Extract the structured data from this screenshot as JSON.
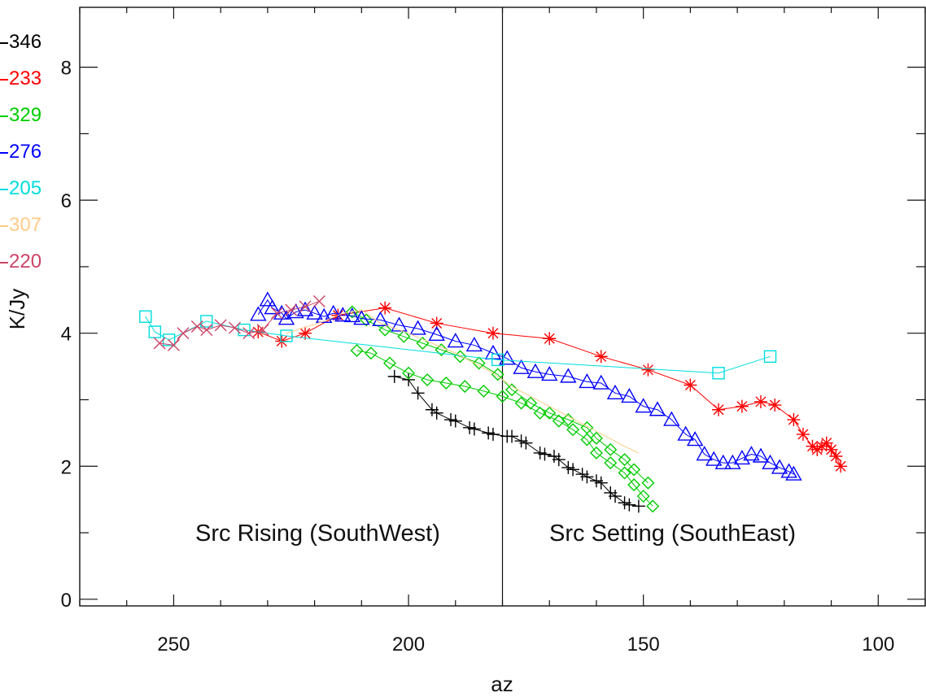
{
  "chart_data": {
    "type": "scatter",
    "xlabel": "az",
    "ylabel": "K/Jy",
    "xlim": [
      270,
      90
    ],
    "ylim": [
      -0.1,
      8.9
    ],
    "x_ticks": [
      "250",
      "200",
      "150",
      "100"
    ],
    "x_tick_values": [
      250,
      200,
      150,
      100
    ],
    "y_ticks": [
      "0",
      "2",
      "4",
      "6",
      "8"
    ],
    "y_tick_values": [
      0,
      2,
      4,
      6,
      8
    ],
    "vline_x": 180,
    "annotations": [
      {
        "text": "Src Rising (SouthWest)",
        "x": 235,
        "y": 1.0
      },
      {
        "text": "Src Setting (SouthEast)",
        "x": 134,
        "y": 1.0
      }
    ],
    "legend_position": "left",
    "series": [
      {
        "name": "346",
        "color": "#000000",
        "marker": "plus",
        "points": [
          [
            203,
            3.35
          ],
          [
            200,
            3.3
          ],
          [
            198,
            3.1
          ],
          [
            195,
            2.85
          ],
          [
            194,
            2.8
          ],
          [
            191,
            2.7
          ],
          [
            190,
            2.68
          ],
          [
            187,
            2.58
          ],
          [
            186,
            2.56
          ],
          [
            183,
            2.5
          ],
          [
            182,
            2.48
          ],
          [
            179,
            2.45
          ],
          [
            178,
            2.45
          ],
          [
            176,
            2.38
          ],
          [
            175,
            2.35
          ],
          [
            172,
            2.2
          ],
          [
            171,
            2.18
          ],
          [
            169,
            2.15
          ],
          [
            168,
            2.1
          ],
          [
            166,
            1.98
          ],
          [
            165,
            1.95
          ],
          [
            163,
            1.88
          ],
          [
            162,
            1.84
          ],
          [
            160,
            1.78
          ],
          [
            159,
            1.75
          ],
          [
            157,
            1.6
          ],
          [
            156,
            1.55
          ],
          [
            154,
            1.45
          ],
          [
            153,
            1.42
          ],
          [
            151,
            1.4
          ]
        ]
      },
      {
        "name": "233",
        "color": "#ff0000",
        "marker": "asterisk",
        "points": [
          [
            232,
            4.02
          ],
          [
            227,
            3.88
          ],
          [
            222,
            4.0
          ],
          [
            215,
            4.27
          ],
          [
            205,
            4.38
          ],
          [
            194,
            4.15
          ],
          [
            182,
            4.0
          ],
          [
            170,
            3.92
          ],
          [
            159,
            3.65
          ],
          [
            149,
            3.45
          ],
          [
            140,
            3.22
          ],
          [
            134,
            2.85
          ],
          [
            129,
            2.9
          ],
          [
            125,
            2.97
          ],
          [
            122,
            2.92
          ],
          [
            118,
            2.7
          ],
          [
            116,
            2.48
          ],
          [
            114,
            2.3
          ],
          [
            113,
            2.25
          ],
          [
            112,
            2.3
          ],
          [
            111,
            2.35
          ],
          [
            110,
            2.25
          ],
          [
            109,
            2.15
          ],
          [
            108,
            2.0
          ]
        ]
      },
      {
        "name": "329",
        "color": "#00cc00",
        "marker": "diamond",
        "points": [
          [
            211,
            3.74
          ],
          [
            208,
            3.7
          ],
          [
            204,
            3.55
          ],
          [
            200,
            3.4
          ],
          [
            196,
            3.3
          ],
          [
            192,
            3.25
          ],
          [
            188,
            3.2
          ],
          [
            184,
            3.13
          ],
          [
            180,
            3.05
          ],
          [
            176,
            2.95
          ],
          [
            172,
            2.8
          ],
          [
            168,
            2.68
          ],
          [
            165,
            2.55
          ],
          [
            162,
            2.4
          ],
          [
            160,
            2.2
          ],
          [
            157,
            2.05
          ],
          [
            154,
            1.9
          ],
          [
            152,
            1.72
          ],
          [
            150,
            1.55
          ],
          [
            148,
            1.4
          ],
          [
            212,
            4.32
          ],
          [
            209,
            4.2
          ],
          [
            205,
            4.05
          ],
          [
            201,
            3.95
          ],
          [
            197,
            3.85
          ],
          [
            193,
            3.75
          ],
          [
            189,
            3.65
          ],
          [
            185,
            3.55
          ],
          [
            181,
            3.38
          ],
          [
            178,
            3.15
          ],
          [
            174,
            2.95
          ],
          [
            170,
            2.8
          ],
          [
            166,
            2.7
          ],
          [
            162,
            2.58
          ],
          [
            160,
            2.42
          ],
          [
            157,
            2.25
          ],
          [
            154,
            2.1
          ],
          [
            152,
            1.95
          ],
          [
            149,
            1.75
          ]
        ]
      },
      {
        "name": "276",
        "color": "#0000ff",
        "marker": "triangle",
        "points": [
          [
            232,
            4.28
          ],
          [
            230,
            4.5
          ],
          [
            229,
            4.38
          ],
          [
            227,
            4.3
          ],
          [
            226,
            4.22
          ],
          [
            224,
            4.32
          ],
          [
            222,
            4.35
          ],
          [
            220,
            4.3
          ],
          [
            218,
            4.25
          ],
          [
            216,
            4.3
          ],
          [
            214,
            4.27
          ],
          [
            212,
            4.26
          ],
          [
            210,
            4.22
          ],
          [
            206,
            4.2
          ],
          [
            202,
            4.12
          ],
          [
            198,
            4.07
          ],
          [
            194,
            3.98
          ],
          [
            190,
            3.88
          ],
          [
            186,
            3.82
          ],
          [
            182,
            3.7
          ],
          [
            179,
            3.62
          ],
          [
            176,
            3.48
          ],
          [
            173,
            3.42
          ],
          [
            170,
            3.38
          ],
          [
            166,
            3.35
          ],
          [
            162,
            3.27
          ],
          [
            159,
            3.25
          ],
          [
            156,
            3.1
          ],
          [
            153,
            3.05
          ],
          [
            150,
            2.9
          ],
          [
            147,
            2.85
          ],
          [
            144,
            2.7
          ],
          [
            141,
            2.48
          ],
          [
            139,
            2.4
          ],
          [
            137,
            2.18
          ],
          [
            135,
            2.1
          ],
          [
            133,
            2.05
          ],
          [
            131,
            2.05
          ],
          [
            129,
            2.12
          ],
          [
            127,
            2.18
          ],
          [
            125,
            2.15
          ],
          [
            123,
            2.05
          ],
          [
            121,
            1.98
          ],
          [
            119,
            1.92
          ],
          [
            118,
            1.88
          ]
        ]
      },
      {
        "name": "205",
        "color": "#00dddd",
        "marker": "square",
        "points": [
          [
            256,
            4.25
          ],
          [
            254,
            4.02
          ],
          [
            251,
            3.9
          ],
          [
            243,
            4.18
          ],
          [
            235,
            4.05
          ],
          [
            226,
            3.96
          ],
          [
            181,
            3.6
          ],
          [
            134,
            3.4
          ],
          [
            123,
            3.65
          ]
        ]
      },
      {
        "name": "307",
        "color": "#ffcc88",
        "marker": "none",
        "points": [
          [
            226,
            4.0
          ],
          [
            218,
            4.18
          ],
          [
            214,
            4.3
          ],
          [
            210,
            4.35
          ],
          [
            206,
            4.15
          ],
          [
            200,
            4.0
          ],
          [
            195,
            3.85
          ],
          [
            190,
            3.7
          ],
          [
            186,
            3.55
          ],
          [
            182,
            3.4
          ],
          [
            178,
            3.2
          ],
          [
            174,
            3.05
          ],
          [
            170,
            2.9
          ],
          [
            166,
            2.75
          ],
          [
            162,
            2.6
          ],
          [
            158,
            2.45
          ],
          [
            154,
            2.3
          ],
          [
            151,
            2.2
          ]
        ]
      },
      {
        "name": "220",
        "color": "#cc4466",
        "marker": "x",
        "points": [
          [
            253,
            3.85
          ],
          [
            250,
            3.82
          ],
          [
            248,
            4.0
          ],
          [
            245,
            4.1
          ],
          [
            243,
            4.05
          ],
          [
            240,
            4.12
          ],
          [
            237,
            4.08
          ],
          [
            234,
            4.0
          ],
          [
            231,
            4.05
          ],
          [
            228,
            4.3
          ],
          [
            225,
            4.35
          ],
          [
            222,
            4.4
          ],
          [
            219,
            4.48
          ]
        ]
      }
    ]
  }
}
